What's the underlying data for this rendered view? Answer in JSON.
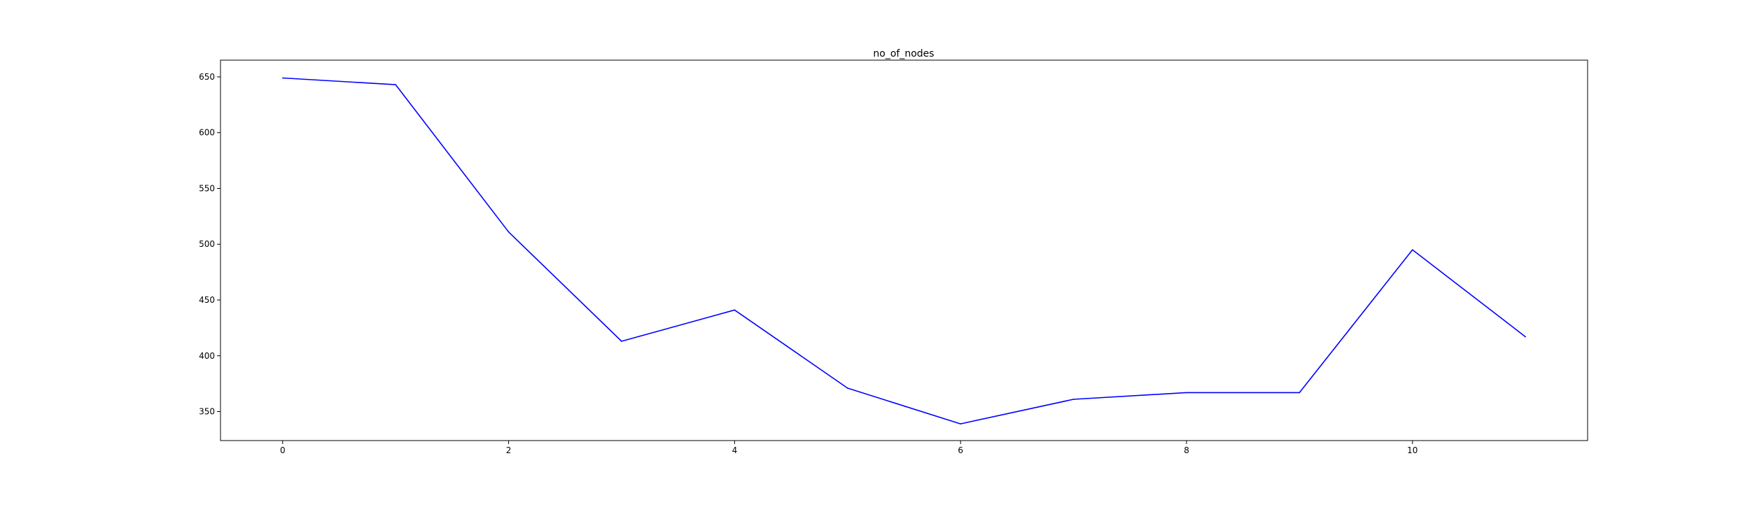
{
  "chart_data": {
    "type": "line",
    "title": "no_of_nodes",
    "xlabel": "",
    "ylabel": "",
    "x": [
      0,
      1,
      2,
      3,
      4,
      5,
      6,
      7,
      8,
      9,
      10,
      11
    ],
    "series": [
      {
        "values": [
          649,
          643,
          511,
          413,
          441,
          371,
          339,
          361,
          367,
          367,
          495,
          417
        ],
        "color": "#0000ff"
      }
    ],
    "xlim": [
      -0.55,
      11.55
    ],
    "ylim": [
      324,
      665
    ],
    "xticks": [
      "0",
      "2",
      "4",
      "6",
      "8",
      "10"
    ],
    "yticks": [
      "350",
      "400",
      "450",
      "500",
      "550",
      "600",
      "650"
    ],
    "grid": false,
    "legend": "none"
  }
}
